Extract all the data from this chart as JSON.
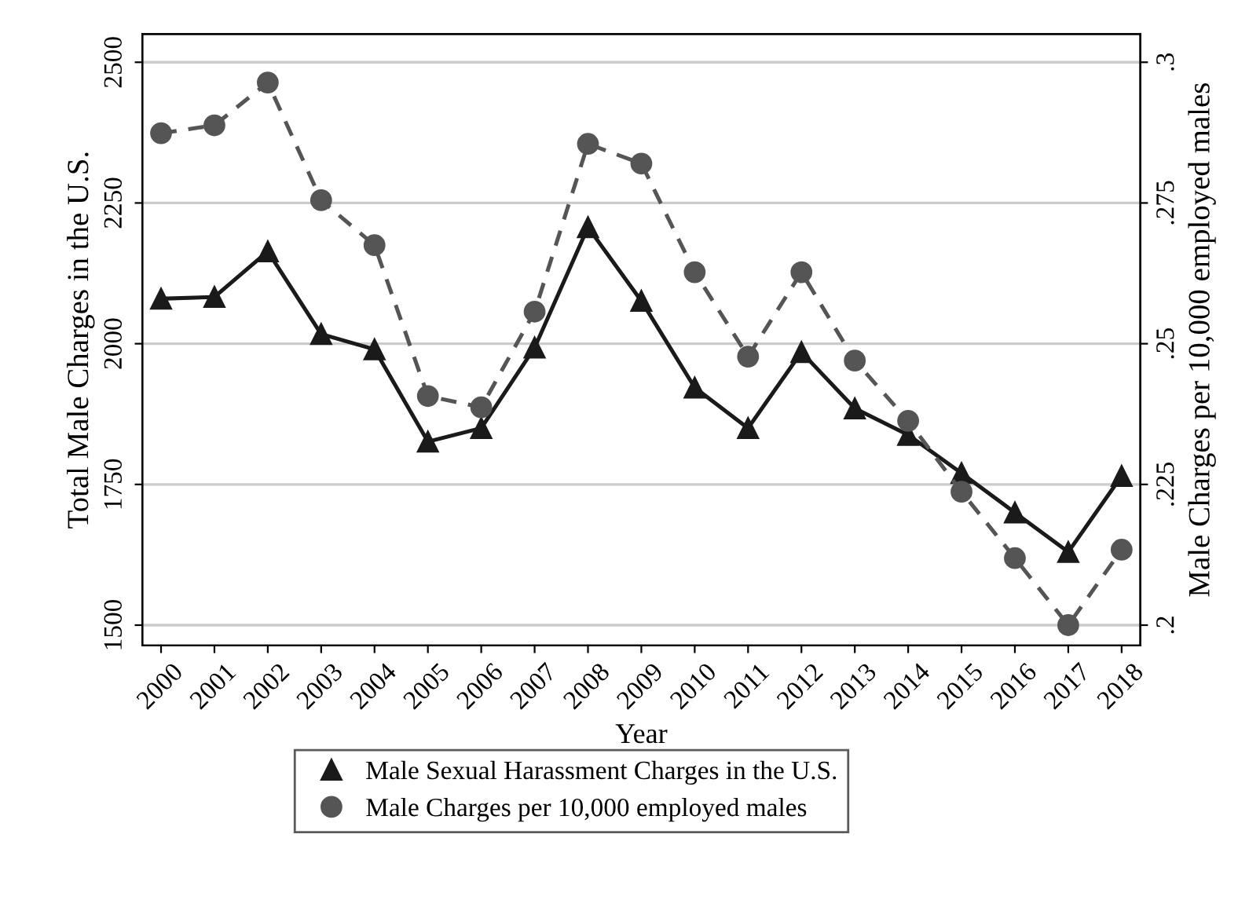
{
  "chart_data": {
    "type": "line",
    "xlabel": "Year",
    "ylabel": "Total Male Charges in the U.S.",
    "y2label": "Male Charges per 10,000 employed males",
    "categories": [
      "2000",
      "2001",
      "2002",
      "2003",
      "2004",
      "2005",
      "2006",
      "2007",
      "2008",
      "2009",
      "2010",
      "2011",
      "2012",
      "2013",
      "2014",
      "2015",
      "2016",
      "2017",
      "2018"
    ],
    "series": [
      {
        "name": "Male Sexual Harassment Charges in the U.S.",
        "color": "#1a1a1a",
        "marker": "triangle",
        "line_style": "solid",
        "values": [
          2080,
          2083,
          2164,
          2017,
          1990,
          1826,
          1850,
          1993,
          2207,
          2076,
          1922,
          1850,
          1985,
          1885,
          1838,
          1770,
          1700,
          1630,
          1765
        ]
      },
      {
        "name": "Male Charges per 10,000 employed males",
        "color": "#555555",
        "marker": "circle",
        "line_style": "dashed",
        "axis": "y2",
        "values": [
          0.2874,
          0.2888,
          0.2964,
          0.2755,
          0.2675,
          0.2407,
          0.2387,
          0.2557,
          0.2855,
          0.282,
          0.2627,
          0.2477,
          0.2627,
          0.247,
          0.2363,
          0.2237,
          0.2119,
          0.2,
          0.2134
        ]
      }
    ],
    "ylim": [
      1464,
      2550
    ],
    "yticks": [
      1500,
      1750,
      2000,
      2250,
      2500
    ],
    "y2lim": [
      0.1964,
      0.305
    ],
    "y2ticks": [
      {
        "value": 0.2,
        "label": ".2"
      },
      {
        "value": 0.225,
        "label": ".225"
      },
      {
        "value": 0.25,
        "label": ".25"
      },
      {
        "value": 0.275,
        "label": ".275"
      },
      {
        "value": 0.3,
        "label": ".3"
      }
    ],
    "grid": "y",
    "legend": "bottom"
  }
}
